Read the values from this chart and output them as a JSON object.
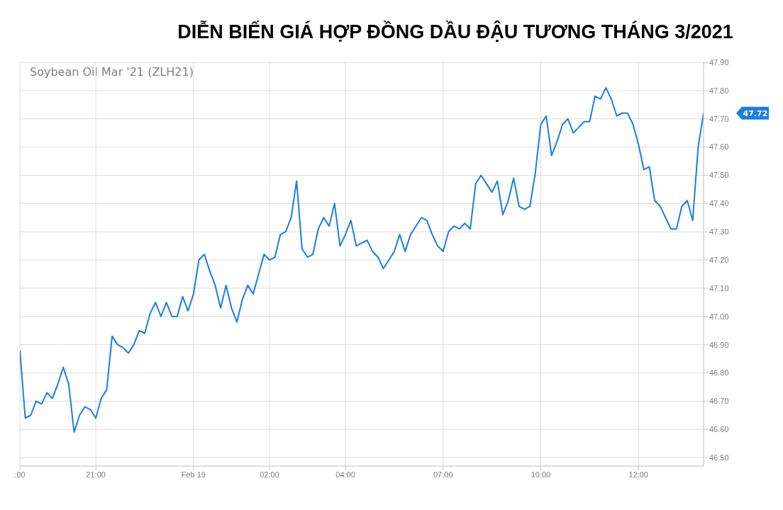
{
  "chart_data": {
    "type": "line",
    "title": "DIỄN BIẾN GIÁ HỢP ĐỒNG DẦU ĐẬU TƯƠNG THÁNG 3/2021",
    "subtitle": "Soybean Oil Mar '21 (ZLH21)",
    "categories": [
      ":00",
      null,
      null,
      null,
      null,
      null,
      null,
      null,
      null,
      null,
      null,
      null,
      null,
      null,
      "21:00",
      null,
      null,
      null,
      null,
      null,
      null,
      null,
      null,
      null,
      null,
      null,
      null,
      null,
      null,
      null,
      null,
      null,
      "Feb 19",
      null,
      null,
      null,
      null,
      null,
      null,
      null,
      null,
      null,
      null,
      null,
      null,
      null,
      "02:00",
      null,
      null,
      null,
      null,
      null,
      null,
      null,
      null,
      null,
      null,
      null,
      null,
      null,
      "04:00",
      null,
      null,
      null,
      null,
      null,
      null,
      null,
      null,
      null,
      null,
      null,
      null,
      null,
      null,
      null,
      null,
      null,
      "07:00",
      null,
      null,
      null,
      null,
      null,
      null,
      null,
      null,
      null,
      null,
      null,
      null,
      null,
      null,
      null,
      null,
      null,
      "10:00",
      null,
      null,
      null,
      null,
      null,
      null,
      null,
      null,
      null,
      null,
      null,
      null,
      null,
      null,
      null,
      null,
      null,
      "12:00",
      null,
      null,
      null,
      null,
      null,
      null,
      null,
      null,
      null,
      null,
      null,
      null
    ],
    "series": [
      {
        "color": "#1a7de6",
        "values": [
          46.88,
          46.64,
          46.65,
          46.7,
          46.69,
          46.73,
          46.71,
          46.76,
          46.82,
          46.76,
          46.59,
          46.65,
          46.68,
          46.67,
          46.64,
          46.71,
          46.74,
          46.93,
          46.9,
          46.89,
          46.87,
          46.9,
          46.95,
          46.94,
          47.01,
          47.05,
          47.0,
          47.05,
          47.0,
          47.0,
          47.07,
          47.02,
          47.08,
          47.2,
          47.22,
          47.16,
          47.11,
          47.03,
          47.11,
          47.03,
          46.98,
          47.06,
          47.11,
          47.08,
          47.15,
          47.22,
          47.2,
          47.21,
          47.29,
          47.3,
          47.35,
          47.48,
          47.24,
          47.21,
          47.22,
          47.31,
          47.35,
          47.32,
          47.4,
          47.25,
          47.29,
          47.34,
          47.25,
          47.26,
          47.27,
          47.23,
          47.21,
          47.17,
          47.2,
          47.23,
          47.29,
          47.23,
          47.29,
          47.32,
          47.35,
          47.34,
          47.29,
          47.25,
          47.23,
          47.3,
          47.32,
          47.31,
          47.33,
          47.31,
          47.47,
          47.5,
          47.47,
          47.44,
          47.48,
          47.36,
          47.41,
          47.49,
          47.39,
          47.38,
          47.39,
          47.51,
          47.68,
          47.71,
          47.57,
          47.62,
          47.68,
          47.7,
          47.65,
          47.67,
          47.69,
          47.69,
          47.78,
          47.77,
          47.81,
          47.77,
          47.71,
          47.72,
          47.72,
          47.68,
          47.61,
          47.52,
          47.53,
          47.41,
          47.39,
          47.35,
          47.31,
          47.31,
          47.39,
          47.41,
          47.34,
          47.6,
          47.72
        ]
      }
    ],
    "ylim": [
      46.47,
      47.9
    ],
    "yticks": [
      {
        "value": 46.5,
        "label": "46.50"
      },
      {
        "value": 46.6,
        "label": "46.60"
      },
      {
        "value": 46.7,
        "label": "46.70"
      },
      {
        "value": 46.8,
        "label": "46.80"
      },
      {
        "value": 46.9,
        "label": "46.90"
      },
      {
        "value": 47.0,
        "label": "47.00"
      },
      {
        "value": 47.1,
        "label": "47.10"
      },
      {
        "value": 47.2,
        "label": "47.20"
      },
      {
        "value": 47.3,
        "label": "47.30"
      },
      {
        "value": 47.4,
        "label": "47.40"
      },
      {
        "value": 47.5,
        "label": "47.50"
      },
      {
        "value": 47.6,
        "label": "47.60"
      },
      {
        "value": 47.7,
        "label": "47.70"
      },
      {
        "value": 47.8,
        "label": "47.80"
      },
      {
        "value": 47.9,
        "label": "47.90"
      }
    ],
    "annotations": [
      "47.72"
    ],
    "grid": true
  }
}
